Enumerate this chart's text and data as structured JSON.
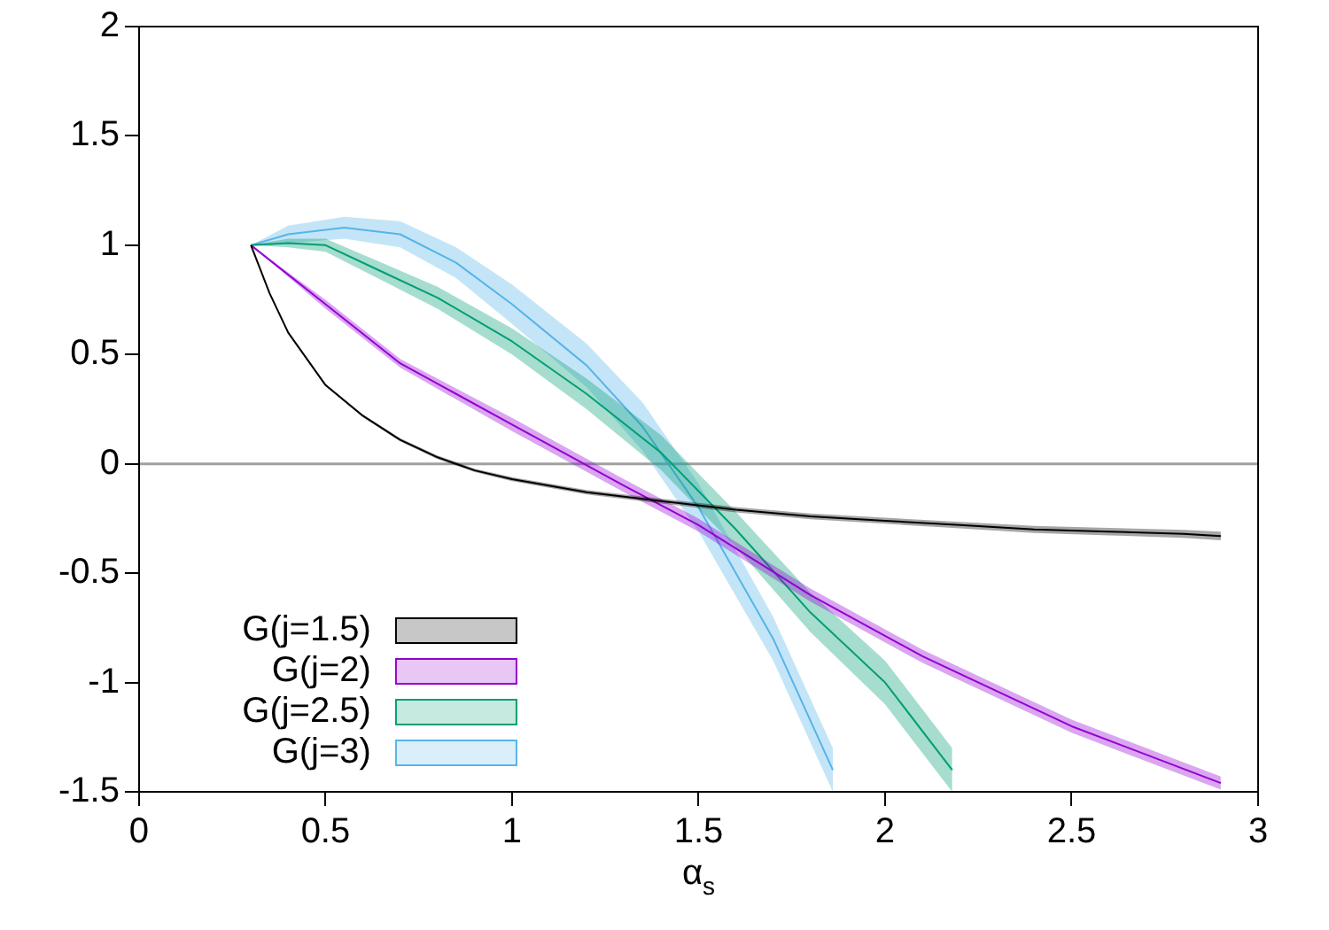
{
  "chart_data": {
    "type": "line",
    "xlabel": "α$_{s}$",
    "xlim": [
      0,
      3
    ],
    "xticks": [
      0,
      0.5,
      1,
      1.5,
      2,
      2.5,
      3
    ],
    "ylim": [
      -1.5,
      2
    ],
    "yticks": [
      -1.5,
      -1,
      -0.5,
      0,
      0.5,
      1,
      1.5,
      2
    ],
    "grid": false,
    "legend": "bottom left",
    "marker": "none",
    "ref_lines": [
      {
        "axis": "y",
        "value": 0,
        "color": "#a0a0a0"
      }
    ],
    "series": [
      {
        "name": "G(j=1.5)",
        "color": "#000000",
        "x": [
          0.3,
          0.35,
          0.4,
          0.5,
          0.6,
          0.7,
          0.8,
          0.9,
          1.0,
          1.2,
          1.4,
          1.6,
          1.8,
          2.0,
          2.2,
          2.4,
          2.6,
          2.8,
          2.9
        ],
        "values": [
          1,
          0.78,
          0.6,
          0.36,
          0.22,
          0.11,
          0.03,
          -0.03,
          -0.07,
          -0.13,
          -0.17,
          -0.21,
          -0.24,
          -0.26,
          -0.28,
          -0.3,
          -0.31,
          -0.32,
          -0.33
        ],
        "lower": [
          1,
          0.775,
          0.595,
          0.355,
          0.214,
          0.103,
          0.022,
          -0.038,
          -0.079,
          -0.14,
          -0.181,
          -0.222,
          -0.253,
          -0.274,
          -0.295,
          -0.316,
          -0.327,
          -0.338,
          -0.35
        ],
        "upper": [
          1,
          0.785,
          0.605,
          0.365,
          0.226,
          0.117,
          0.038,
          -0.022,
          -0.061,
          -0.12,
          -0.159,
          -0.198,
          -0.227,
          -0.246,
          -0.265,
          -0.284,
          -0.293,
          -0.302,
          -0.31
        ]
      },
      {
        "name": "G(j=2)",
        "color": "#9400d3",
        "x": [
          0.3,
          0.5,
          0.7,
          1.0,
          1.3,
          1.5,
          1.8,
          2.1,
          2.5,
          2.9
        ],
        "values": [
          1,
          0.73,
          0.46,
          0.18,
          -0.1,
          -0.28,
          -0.6,
          -0.88,
          -1.2,
          -1.46
        ],
        "lower": [
          1,
          0.71,
          0.44,
          0.15,
          -0.13,
          -0.31,
          -0.63,
          -0.91,
          -1.23,
          -1.49
        ],
        "upper": [
          1,
          0.75,
          0.48,
          0.21,
          -0.07,
          -0.25,
          -0.57,
          -0.85,
          -1.17,
          -1.43
        ]
      },
      {
        "name": "G(j=2.5)",
        "color": "#009e73",
        "x": [
          0.3,
          0.4,
          0.5,
          0.65,
          0.8,
          1.0,
          1.2,
          1.4,
          1.6,
          1.8,
          2.0,
          2.18
        ],
        "values": [
          1,
          1.01,
          1.0,
          0.88,
          0.76,
          0.56,
          0.32,
          0.05,
          -0.3,
          -0.68,
          -1.0,
          -1.4
        ],
        "lower": [
          1,
          0.99,
          0.97,
          0.84,
          0.71,
          0.5,
          0.25,
          -0.03,
          -0.38,
          -0.77,
          -1.1,
          -1.5
        ],
        "upper": [
          1,
          1.03,
          1.03,
          0.92,
          0.81,
          0.62,
          0.39,
          0.13,
          -0.22,
          -0.59,
          -0.9,
          -1.3
        ]
      },
      {
        "name": "G(j=3)",
        "color": "#56b4e9",
        "x": [
          0.3,
          0.4,
          0.55,
          0.7,
          0.85,
          1.0,
          1.2,
          1.35,
          1.5,
          1.7,
          1.86
        ],
        "values": [
          1,
          1.05,
          1.08,
          1.05,
          0.92,
          0.73,
          0.45,
          0.17,
          -0.2,
          -0.8,
          -1.4
        ],
        "lower": [
          1,
          1.01,
          1.03,
          0.99,
          0.85,
          0.64,
          0.35,
          0.06,
          -0.31,
          -0.9,
          -1.5
        ],
        "upper": [
          1,
          1.09,
          1.13,
          1.11,
          0.99,
          0.82,
          0.55,
          0.28,
          -0.09,
          -0.7,
          -1.3
        ]
      }
    ]
  }
}
